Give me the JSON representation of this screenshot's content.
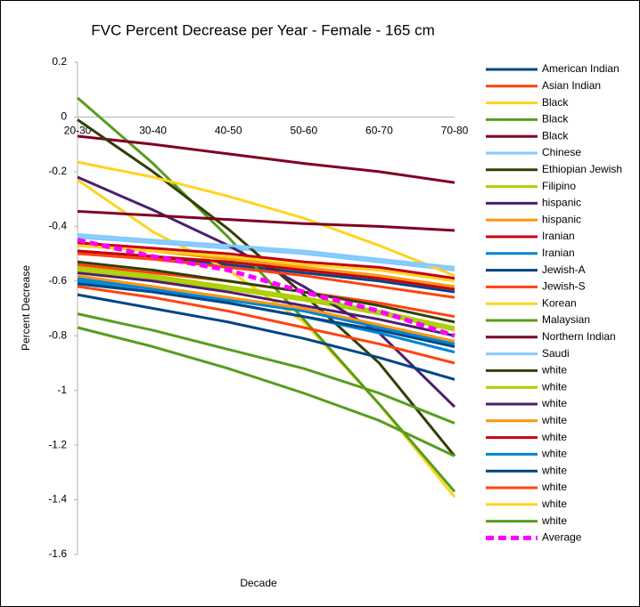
{
  "chart_data": {
    "type": "line",
    "title": "FVC Percent Decrease per Year - Female - 165 cm",
    "x_label": "Decade",
    "y_label": "Percent Decrease",
    "categories": [
      "20-30",
      "30-40",
      "40-50",
      "50-60",
      "60-70",
      "70-80"
    ],
    "ylim": [
      -1.6,
      0.2
    ],
    "yticks": [
      -1.6,
      -1.4,
      -1.2,
      -1,
      -0.8,
      -0.6,
      -0.4,
      -0.2,
      0,
      0.2
    ],
    "grid": false,
    "series": [
      {
        "name": "American Indian",
        "color": "#004586",
        "values": [
          -0.49,
          -0.51,
          -0.54,
          -0.57,
          -0.6,
          -0.64
        ]
      },
      {
        "name": "Asian Indian",
        "color": "#ff420e",
        "values": [
          -0.54,
          -0.57,
          -0.6,
          -0.64,
          -0.68,
          -0.73
        ]
      },
      {
        "name": "Black",
        "color": "#ffd320",
        "values": [
          -0.23,
          -0.42,
          -0.56,
          -0.75,
          -1.05,
          -1.39
        ]
      },
      {
        "name": "Black",
        "color": "#579d1c",
        "values": [
          0.07,
          -0.17,
          -0.44,
          -0.74,
          -1.05,
          -1.37
        ]
      },
      {
        "name": "Black",
        "color": "#7e0021",
        "values": [
          -0.07,
          -0.1,
          -0.135,
          -0.17,
          -0.2,
          -0.24
        ]
      },
      {
        "name": "Chinese",
        "color": "#83caff",
        "values": [
          -0.44,
          -0.46,
          -0.48,
          -0.5,
          -0.53,
          -0.56
        ]
      },
      {
        "name": "Ethiopian Jewish",
        "color": "#314004",
        "values": [
          -0.01,
          -0.2,
          -0.41,
          -0.65,
          -0.9,
          -1.24
        ]
      },
      {
        "name": "Filipino",
        "color": "#aecf00",
        "values": [
          -0.56,
          -0.59,
          -0.63,
          -0.67,
          -0.72,
          -0.78
        ]
      },
      {
        "name": "hispanic",
        "color": "#4b1f6f",
        "values": [
          -0.22,
          -0.34,
          -0.47,
          -0.62,
          -0.79,
          -1.06
        ]
      },
      {
        "name": "hispanic",
        "color": "#ff950e",
        "values": [
          -0.47,
          -0.49,
          -0.52,
          -0.55,
          -0.58,
          -0.62
        ]
      },
      {
        "name": "Iranian",
        "color": "#c5000b",
        "values": [
          -0.46,
          -0.48,
          -0.5,
          -0.53,
          -0.55,
          -0.59
        ]
      },
      {
        "name": "Iranian",
        "color": "#0084d1",
        "values": [
          -0.59,
          -0.63,
          -0.67,
          -0.71,
          -0.77,
          -0.83
        ]
      },
      {
        "name": "Jewish-A",
        "color": "#004586",
        "values": [
          -0.65,
          -0.7,
          -0.75,
          -0.81,
          -0.88,
          -0.96
        ]
      },
      {
        "name": "Jewish-S",
        "color": "#ff420e",
        "values": [
          -0.62,
          -0.66,
          -0.71,
          -0.77,
          -0.83,
          -0.9
        ]
      },
      {
        "name": "Korean",
        "color": "#ffd320",
        "values": [
          -0.165,
          -0.22,
          -0.29,
          -0.37,
          -0.47,
          -0.58
        ]
      },
      {
        "name": "Malaysian",
        "color": "#579d1c",
        "values": [
          -0.72,
          -0.78,
          -0.85,
          -0.92,
          -1.01,
          -1.12
        ]
      },
      {
        "name": "Northern Indian",
        "color": "#7e0021",
        "values": [
          -0.345,
          -0.36,
          -0.375,
          -0.39,
          -0.4,
          -0.415
        ]
      },
      {
        "name": "Saudi",
        "color": "#83caff",
        "values": [
          -0.43,
          -0.45,
          -0.47,
          -0.49,
          -0.52,
          -0.55
        ]
      },
      {
        "name": "white",
        "color": "#314004",
        "values": [
          -0.53,
          -0.56,
          -0.6,
          -0.64,
          -0.69,
          -0.75
        ]
      },
      {
        "name": "white",
        "color": "#aecf00",
        "values": [
          -0.55,
          -0.58,
          -0.62,
          -0.66,
          -0.71,
          -0.77
        ]
      },
      {
        "name": "white",
        "color": "#4b1f6f",
        "values": [
          -0.57,
          -0.6,
          -0.64,
          -0.69,
          -0.74,
          -0.8
        ]
      },
      {
        "name": "white",
        "color": "#ff950e",
        "values": [
          -0.58,
          -0.62,
          -0.66,
          -0.7,
          -0.76,
          -0.82
        ]
      },
      {
        "name": "white",
        "color": "#c5000b",
        "values": [
          -0.49,
          -0.51,
          -0.53,
          -0.56,
          -0.59,
          -0.63
        ]
      },
      {
        "name": "white",
        "color": "#0084d1",
        "values": [
          -0.6,
          -0.64,
          -0.68,
          -0.73,
          -0.79,
          -0.86
        ]
      },
      {
        "name": "white",
        "color": "#004586",
        "values": [
          -0.61,
          -0.64,
          -0.68,
          -0.73,
          -0.78,
          -0.84
        ]
      },
      {
        "name": "white",
        "color": "#ff420e",
        "values": [
          -0.5,
          -0.52,
          -0.55,
          -0.58,
          -0.62,
          -0.66
        ]
      },
      {
        "name": "white",
        "color": "#ffd320",
        "values": [
          -0.47,
          -0.49,
          -0.51,
          -0.54,
          -0.56,
          -0.6
        ]
      },
      {
        "name": "white",
        "color": "#579d1c",
        "values": [
          -0.77,
          -0.84,
          -0.92,
          -1.01,
          -1.11,
          -1.24
        ]
      },
      {
        "name": "Average",
        "color": "#ff00ff",
        "dashed": true,
        "values": [
          -0.45,
          -0.51,
          -0.56,
          -0.64,
          -0.71,
          -0.8
        ]
      }
    ]
  }
}
